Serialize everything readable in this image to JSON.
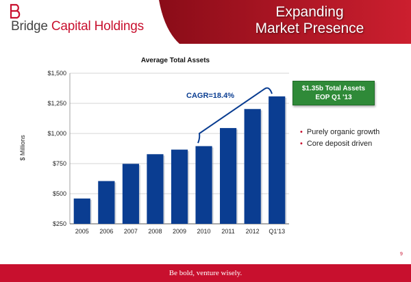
{
  "header": {
    "logo_first": "Bridge ",
    "logo_rest": "Capital Holdings",
    "title_line1": "Expanding",
    "title_line2": "Market Presence"
  },
  "colors": {
    "brand_red": "#c8102e",
    "bar_blue": "#0a3d91",
    "callout_green": "#2f8a38"
  },
  "chart_data": {
    "type": "bar",
    "title": "Average Total Assets",
    "xlabel": "",
    "ylabel": "$ Millions",
    "categories": [
      "2005",
      "2006",
      "2007",
      "2008",
      "2009",
      "2010",
      "2011",
      "2012",
      "Q1'13"
    ],
    "values": [
      460,
      605,
      748,
      828,
      866,
      895,
      1045,
      1203,
      1308
    ],
    "ylim": [
      250,
      1500
    ],
    "yticks": [
      250,
      500,
      750,
      1000,
      1250,
      1500
    ],
    "ytick_labels": [
      "$250",
      "$500",
      "$750",
      "$1,000",
      "$1,250",
      "$1,500"
    ],
    "grid": true,
    "annotation": "CAGR=18.4%"
  },
  "callout": {
    "line1": "$1.35b Total Assets",
    "line2": "EOP Q1 '13"
  },
  "bullets": [
    "Purely organic growth",
    "Core deposit driven"
  ],
  "footer": {
    "tagline": "Be bold, venture wisely."
  },
  "page_number": "9"
}
